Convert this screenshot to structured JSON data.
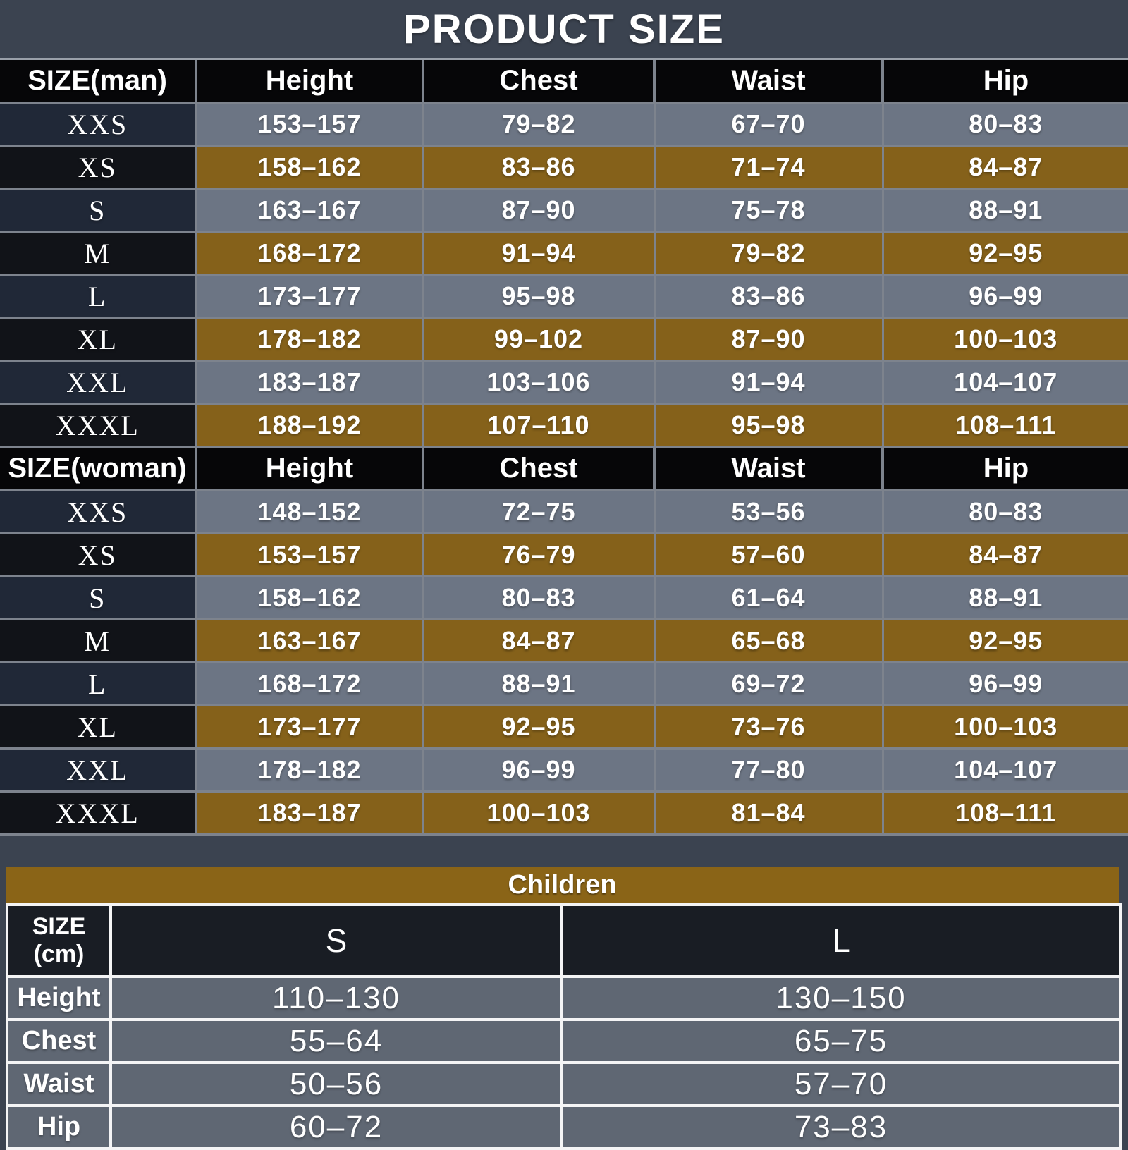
{
  "title": "PRODUCT SIZE",
  "chart_data": [
    {
      "type": "table",
      "name": "men_sizes",
      "headers": [
        "SIZE(man)",
        "Height",
        "Chest",
        "Waist",
        "Hip"
      ],
      "rows": [
        [
          "XXS",
          "153–157",
          "79–82",
          "67–70",
          "80–83"
        ],
        [
          "XS",
          "158–162",
          "83–86",
          "71–74",
          "84–87"
        ],
        [
          "S",
          "163–167",
          "87–90",
          "75–78",
          "88–91"
        ],
        [
          "M",
          "168–172",
          "91–94",
          "79–82",
          "92–95"
        ],
        [
          "L",
          "173–177",
          "95–98",
          "83–86",
          "96–99"
        ],
        [
          "XL",
          "178–182",
          "99–102",
          "87–90",
          "100–103"
        ],
        [
          "XXL",
          "183–187",
          "103–106",
          "91–94",
          "104–107"
        ],
        [
          "XXXL",
          "188–192",
          "107–110",
          "95–98",
          "108–111"
        ]
      ]
    },
    {
      "type": "table",
      "name": "women_sizes",
      "headers": [
        "SIZE(woman)",
        "Height",
        "Chest",
        "Waist",
        "Hip"
      ],
      "rows": [
        [
          "XXS",
          "148–152",
          "72–75",
          "53–56",
          "80–83"
        ],
        [
          "XS",
          "153–157",
          "76–79",
          "57–60",
          "84–87"
        ],
        [
          "S",
          "158–162",
          "80–83",
          "61–64",
          "88–91"
        ],
        [
          "M",
          "163–167",
          "84–87",
          "65–68",
          "92–95"
        ],
        [
          "L",
          "168–172",
          "88–91",
          "69–72",
          "96–99"
        ],
        [
          "XL",
          "173–177",
          "92–95",
          "73–76",
          "100–103"
        ],
        [
          "XXL",
          "178–182",
          "96–99",
          "77–80",
          "104–107"
        ],
        [
          "XXXL",
          "183–187",
          "100–103",
          "81–84",
          "108–111"
        ]
      ]
    },
    {
      "type": "table",
      "name": "children_sizes",
      "title": "Children",
      "headers": [
        "SIZE\n(cm)",
        "S",
        "L"
      ],
      "rows": [
        [
          "Height",
          "110–130",
          "130–150"
        ],
        [
          "Chest",
          "55–64",
          "65–75"
        ],
        [
          "Waist",
          "50–56",
          "57–70"
        ],
        [
          "Hip",
          "60–72",
          "73–83"
        ]
      ]
    }
  ],
  "colors": {
    "background": "#3b4350",
    "header_black": "#060608",
    "row_gray": "#6c7584",
    "row_brown": "#85611a",
    "label_navy": "#202837",
    "label_black": "#111318",
    "children_band_brown": "#8a6417",
    "children_header_dark": "#191d24",
    "children_row_gray": "#5f6773",
    "grid_white": "#f4f4f5",
    "separator_gray": "#7d838d",
    "text": "#ffffff"
  }
}
